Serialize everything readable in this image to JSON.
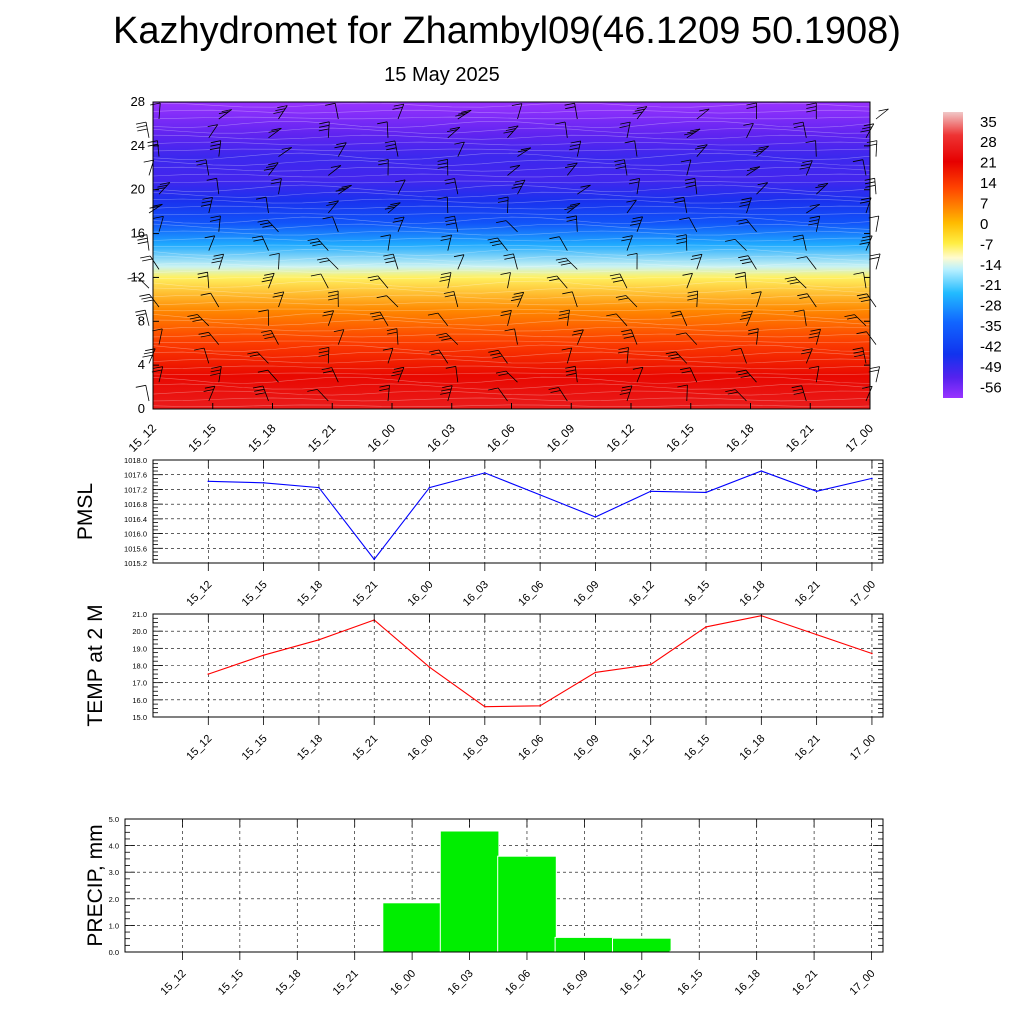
{
  "title": "Kazhydromet for Zhambyl09(46.1209 50.1908)",
  "subtitle": "15 May 2025",
  "time_labels": [
    "15_12",
    "15_15",
    "15_18",
    "15_21",
    "16_00",
    "16_03",
    "16_06",
    "16_09",
    "16_12",
    "16_15",
    "16_18",
    "16_21",
    "17_00"
  ],
  "chart_data": [
    {
      "type": "heatmap",
      "ylim": [
        0,
        28
      ],
      "yticks": [
        "0",
        "4",
        "8",
        "12",
        "16",
        "20",
        "24",
        "28"
      ],
      "colorbar": {
        "labels": [
          "35",
          "28",
          "21",
          "14",
          "7",
          "0",
          "-7",
          "-14",
          "-21",
          "-28",
          "-35",
          "-42",
          "-49",
          "-56"
        ],
        "stops": [
          {
            "v": 38,
            "c": "#f0c8c8"
          },
          {
            "v": 30,
            "c": "#ee3333"
          },
          {
            "v": 21,
            "c": "#e60000"
          },
          {
            "v": 12,
            "c": "#ff4400"
          },
          {
            "v": 5,
            "c": "#ff8800"
          },
          {
            "v": 0,
            "c": "#ffbb00"
          },
          {
            "v": -7,
            "c": "#ffee44"
          },
          {
            "v": -12,
            "c": "#fffbd0"
          },
          {
            "v": -16,
            "c": "#b8f0ff"
          },
          {
            "v": -24,
            "c": "#22bbff"
          },
          {
            "v": -34,
            "c": "#1166ff"
          },
          {
            "v": -45,
            "c": "#1133ee"
          },
          {
            "v": -53,
            "c": "#5522ee"
          },
          {
            "v": -60,
            "c": "#9933ff"
          }
        ]
      },
      "profile": [
        {
          "h": 0,
          "t": 26
        },
        {
          "h": 3,
          "t": 20
        },
        {
          "h": 6,
          "t": 13
        },
        {
          "h": 9,
          "t": 5
        },
        {
          "h": 12,
          "t": -8
        },
        {
          "h": 13,
          "t": -15
        },
        {
          "h": 15,
          "t": -26
        },
        {
          "h": 17,
          "t": -38
        },
        {
          "h": 19,
          "t": -46
        },
        {
          "h": 21,
          "t": -51
        },
        {
          "h": 23,
          "t": -50
        },
        {
          "h": 25,
          "t": -54
        },
        {
          "h": 28,
          "t": -62
        }
      ]
    },
    {
      "type": "line",
      "ylabel": "PMSL",
      "ylim": [
        1015.2,
        1018.0
      ],
      "yticks": [
        "1015.2",
        "1015.6",
        "1016.0",
        "1016.4",
        "1016.8",
        "1017.2",
        "1017.6",
        "1018.0"
      ],
      "color": "#0000ff",
      "values": [
        1017.42,
        1017.38,
        1017.25,
        1015.3,
        1017.25,
        1017.65,
        1017.05,
        1016.45,
        1017.15,
        1017.12,
        1017.7,
        1017.15,
        1017.5
      ]
    },
    {
      "type": "line",
      "ylabel": "TEMP at 2 M",
      "ylim": [
        15.0,
        21.0
      ],
      "yticks": [
        "15.0",
        "16.0",
        "17.0",
        "18.0",
        "19.0",
        "20.0",
        "21.0"
      ],
      "color": "#ff0000",
      "values": [
        17.5,
        18.6,
        19.5,
        20.65,
        17.9,
        15.6,
        15.65,
        17.6,
        18.05,
        20.25,
        20.9,
        19.8,
        18.7
      ]
    },
    {
      "type": "bar",
      "ylabel": "PRECIP, mm",
      "ylim": [
        0.0,
        5.0
      ],
      "yticks": [
        "0.0",
        "1.0",
        "2.0",
        "3.0",
        "4.0",
        "5.0"
      ],
      "color": "#00ee00",
      "values": [
        0,
        0,
        0,
        0,
        1.85,
        4.55,
        3.6,
        0.55,
        0.52,
        0.03,
        0,
        0,
        0
      ]
    }
  ]
}
